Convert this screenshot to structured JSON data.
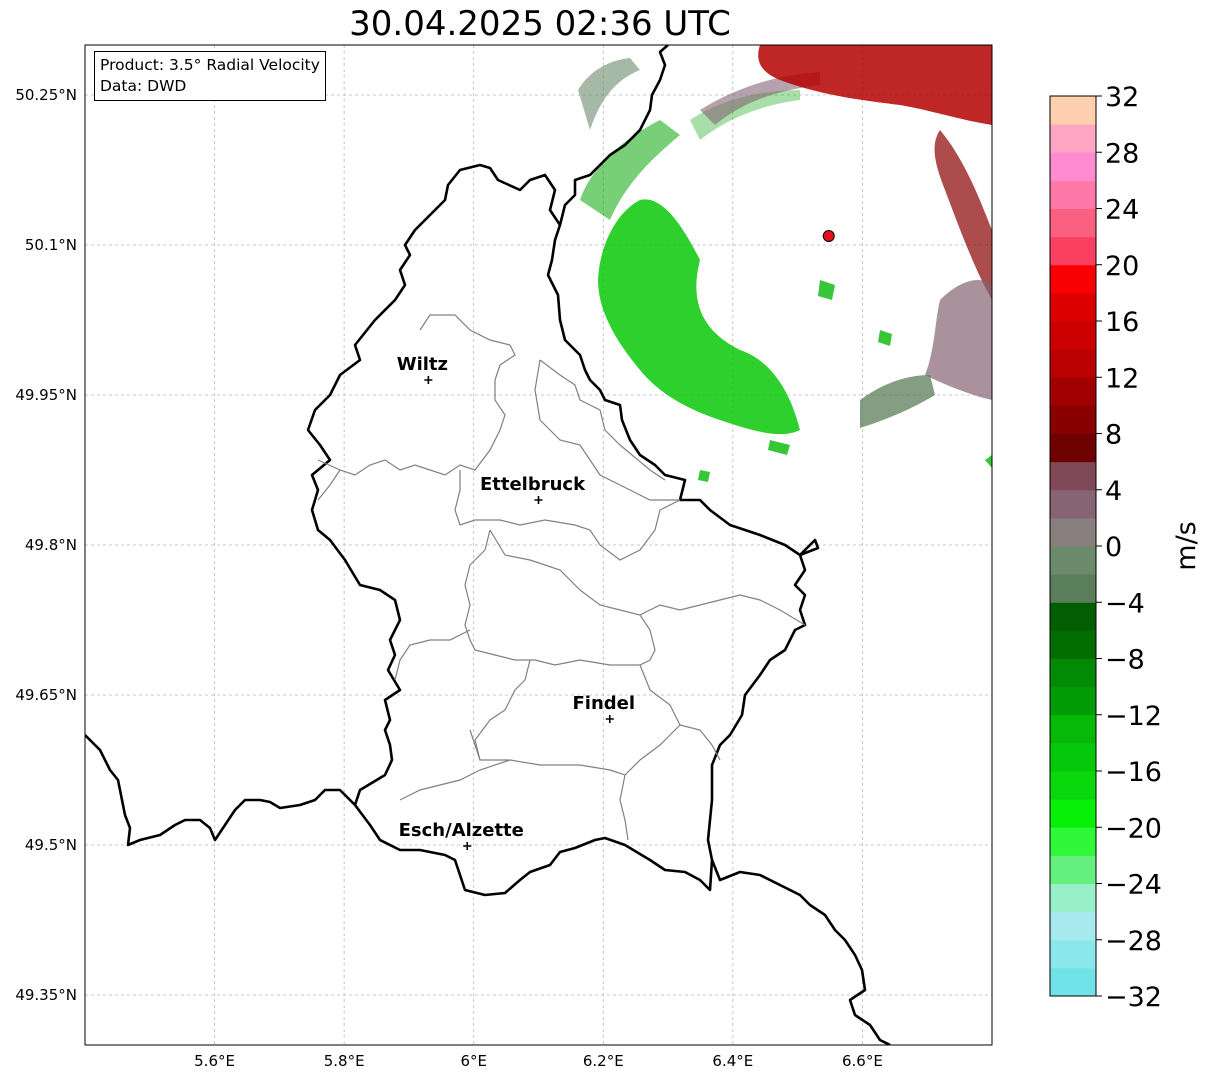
{
  "title": "30.04.2025 02:36 UTC",
  "info_box": {
    "product_line": "Product: 3.5° Radial Velocity",
    "data_line": "Data: DWD"
  },
  "map": {
    "lon_range": [
      5.4,
      6.8
    ],
    "lat_range": [
      49.3,
      50.3
    ],
    "lat_ticks": [
      "50.25°N",
      "50.1°N",
      "49.95°N",
      "49.8°N",
      "49.65°N",
      "49.5°N",
      "49.35°N"
    ],
    "lon_ticks": [
      "5.6°E",
      "5.8°E",
      "6°E",
      "6.2°E",
      "6.4°E",
      "6.6°E"
    ],
    "gridlines": true,
    "cities": [
      {
        "name": "Wiltz",
        "lon": 5.93,
        "lat": 49.965
      },
      {
        "name": "Ettelbruck",
        "lon": 6.1,
        "lat": 49.845
      },
      {
        "name": "Findel",
        "lon": 6.21,
        "lat": 49.626
      },
      {
        "name": "Esch/Alzette",
        "lon": 5.99,
        "lat": 49.499
      }
    ],
    "radar_site": {
      "lon": 6.548,
      "lat": 50.109,
      "color": "#e8101a"
    }
  },
  "colorbar": {
    "label": "m/s",
    "min": -32,
    "max": 32,
    "tick_labels": [
      "32",
      "28",
      "24",
      "20",
      "16",
      "12",
      "8",
      "4",
      "0",
      "−4",
      "−8",
      "−12",
      "−16",
      "−20",
      "−24",
      "−28",
      "−32"
    ],
    "colors_bottom_to_top": [
      "#70e2e8",
      "#8ae8ec",
      "#a6eaf0",
      "#98f0c8",
      "#64f07c",
      "#30f838",
      "#08f008",
      "#08d80c",
      "#06c80a",
      "#06b808",
      "#049c06",
      "#038a05",
      "#026e02",
      "#025e02",
      "#5a7e5a",
      "#6a8a6a",
      "#887e7e",
      "#866474",
      "#804856",
      "#6e0000",
      "#8a0000",
      "#a00000",
      "#ba0000",
      "#cc0000",
      "#dc0000",
      "#f80004",
      "#fa4060",
      "#fc6080",
      "#fe78a8",
      "#fe8ad0",
      "#fea6c4",
      "#fed0b0"
    ]
  }
}
